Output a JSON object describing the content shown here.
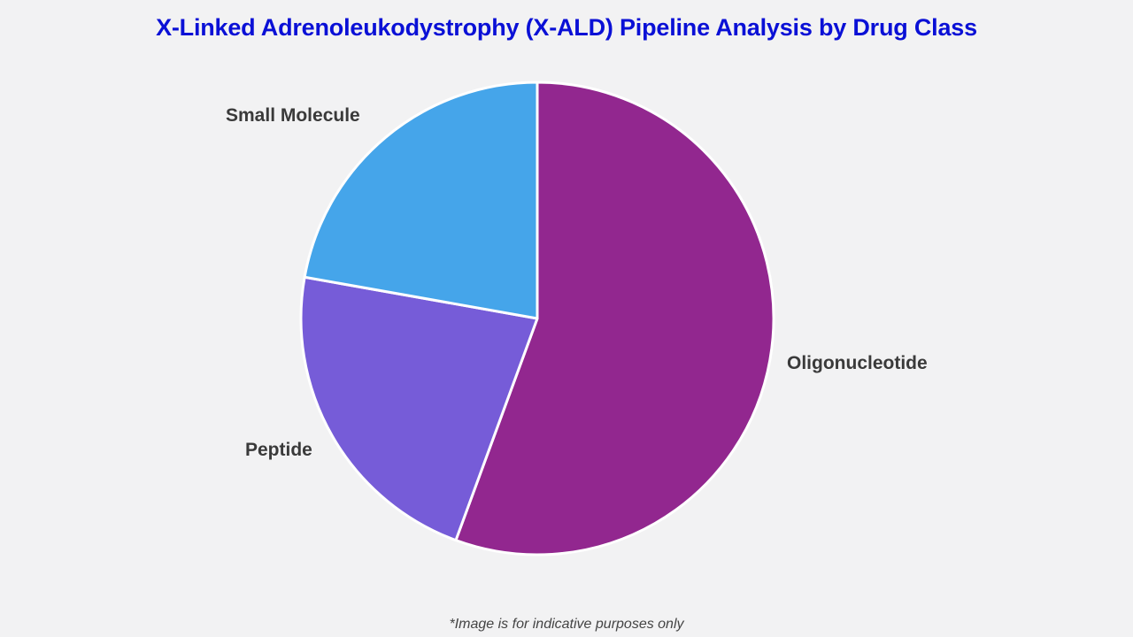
{
  "title": "X-Linked Adrenoleukodystrophy (X-ALD) Pipeline Analysis by Drug Class",
  "footnote": "*Image is for indicative purposes only",
  "chart_data": {
    "type": "pie",
    "title": "X-Linked Adrenoleukodystrophy (X-ALD) Pipeline Analysis by Drug Class",
    "categories": [
      "Oligonucleotide",
      "Peptide",
      "Small Molecule"
    ],
    "values": [
      55.6,
      22.2,
      22.2
    ],
    "colors": [
      "#92278f",
      "#765cd8",
      "#45a5ea"
    ],
    "start_angle_deg": 0,
    "direction": "clockwise",
    "legend": "none (direct labels)"
  },
  "labels": {
    "oligonucleotide": "Oligonucleotide",
    "peptide": "Peptide",
    "small_molecule": "Small Molecule"
  }
}
